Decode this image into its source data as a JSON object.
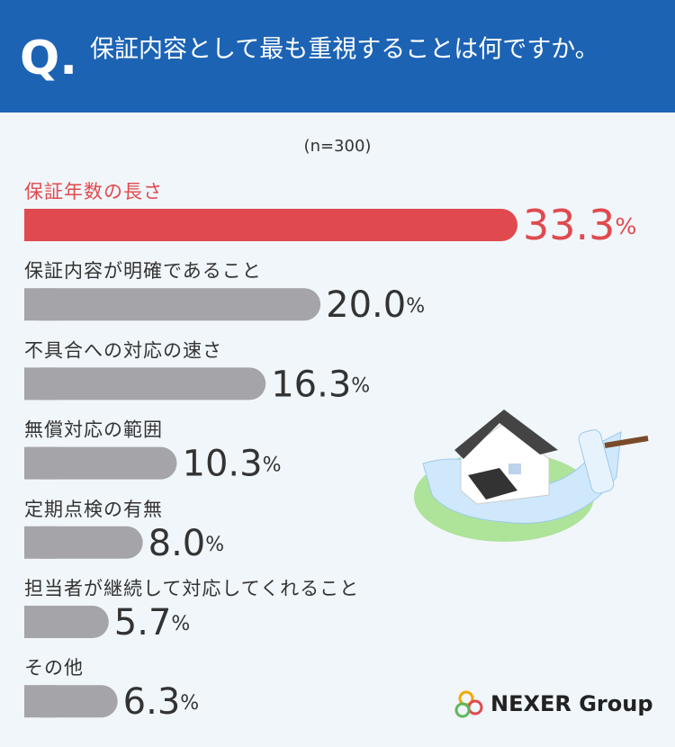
{
  "header": {
    "badge": "Q."
  },
  "logo": "NEXER Group",
  "chart_data": {
    "type": "bar",
    "orientation": "horizontal",
    "title": "保証内容として最も重視することは何ですか。",
    "subtitle": "(n=300)",
    "categories": [
      "保証年数の長さ",
      "保証内容が明確であること",
      "不具合への対応の速さ",
      "無償対応の範囲",
      "定期点検の有無",
      "担当者が継続して対応してくれること",
      "その他"
    ],
    "values": [
      33.3,
      20.0,
      16.3,
      10.3,
      8.0,
      5.7,
      6.3
    ],
    "value_labels": [
      "33.3%",
      "20.0%",
      "16.3%",
      "10.3%",
      "8.0%",
      "5.7%",
      "6.3%"
    ],
    "colors": [
      "#e04a4e",
      "#a4a4a9",
      "#a4a4a9",
      "#a4a4a9",
      "#a4a4a9",
      "#a4a4a9",
      "#a4a4a9"
    ]
  }
}
